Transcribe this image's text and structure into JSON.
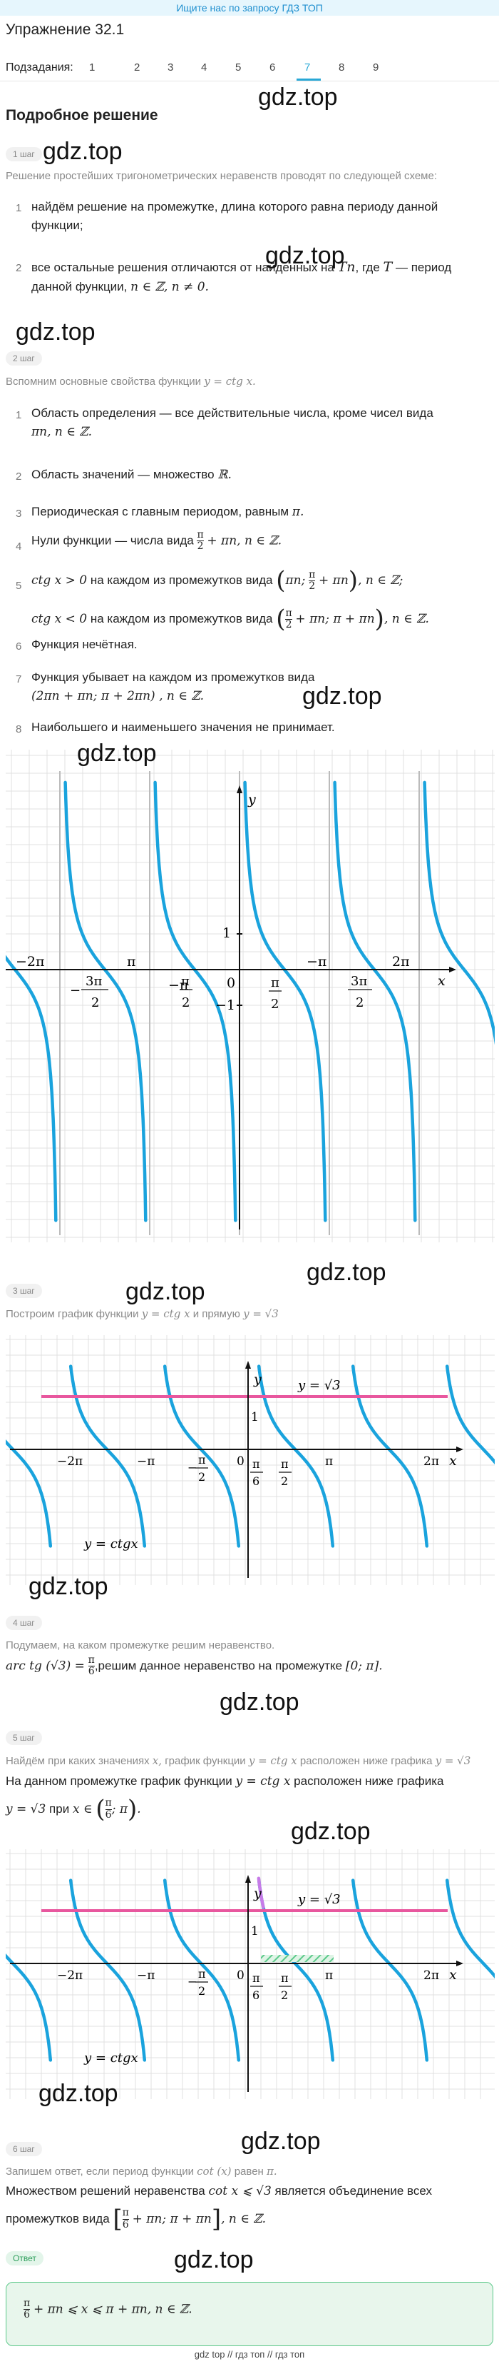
{
  "banner": {
    "text": "Ищите нас по запросу ГДЗ ТОП"
  },
  "header": {
    "title": "Упражнение 32.1"
  },
  "tasks": {
    "label": "Подзадания:",
    "items": [
      "1",
      "2",
      "3",
      "4",
      "5",
      "6",
      "7",
      "8",
      "9"
    ],
    "active_index": 6,
    "accent": "#29a8d6"
  },
  "solution": {
    "title": "Подробное решение"
  },
  "watermark": "gdz.top",
  "steps": {
    "s1": {
      "chip": "1 шаг",
      "note": "Решение простейших тригонометрических неравенств проводят по следующей схеме:",
      "items": [
        {
          "n": "1",
          "text": "найдём решение на промежутке, длина которого равна периоду данной функции;"
        },
        {
          "n": "2",
          "text_a": "все остальные решения отличаются от найденных на",
          "tn": "Tn",
          "text_b": ", где",
          "T": "T",
          "text_c": "— период данной функции,",
          "cond": "n ∈ ℤ, n ≠ 0."
        }
      ]
    },
    "s2": {
      "chip": "2 шаг",
      "note": "Вспомним основные свойства функции",
      "note_math": "y = ctg x.",
      "items": [
        {
          "n": "1",
          "text": "Область определения — все действительные числа, кроме чисел вида",
          "math": "πn,  n ∈ ℤ."
        },
        {
          "n": "2",
          "text": "Область значений — множество",
          "math": "ℝ."
        },
        {
          "n": "3",
          "text": "Периодическая с главным периодом, равным",
          "math": "π."
        },
        {
          "n": "4",
          "text": "Нули функции — числа вида",
          "num": "π",
          "den": "2",
          "tail": "+ πn,  n ∈ ℤ."
        },
        {
          "n": "5",
          "a_math": "ctg x > 0",
          "a_text": "на каждом из промежутков вида",
          "a_int_l": "πn;",
          "a_num": "π",
          "a_den": "2",
          "a_int_r": "+ πn",
          "a_tail": ", n ∈ ℤ;",
          "b_math": "ctg x < 0",
          "b_text": "на каждом из промежутков вида",
          "b_num": "π",
          "b_den": "2",
          "b_int_l": "+ πn;  π + πn",
          "b_tail": ", n ∈ ℤ."
        },
        {
          "n": "6",
          "text": "Функция нечётная."
        },
        {
          "n": "7",
          "text": "Функция убывает на каждом из промежутков вида",
          "math": "(2πn + πn;  π + 2πn) ,  n ∈ ℤ."
        },
        {
          "n": "8",
          "text": "Наибольшего и наименьшего значения не принимает."
        }
      ]
    },
    "graph1": {
      "labels": {
        "y": "y",
        "x": "x",
        "one": "1",
        "neg_one": "−1",
        "zero": "0",
        "m2pi": "−2π",
        "pi": "π",
        "m3pi_num": "3π",
        "m3pi_den": "2",
        "mpi": "−π",
        "mpi2_num": "π",
        "mpi2_den": "2",
        "pi2_num": "π",
        "pi2_den": "2",
        "mpi_right": "−π",
        "p3pi_num": "3π",
        "p3pi_den": "2",
        "p2pi": "2π"
      }
    },
    "s3": {
      "chip": "3 шаг",
      "note": "Построим график функции",
      "note_math_a": "y = ctg x",
      "note_mid": "и прямую",
      "note_math_b": "y = √3"
    },
    "graph2": {
      "labels": {
        "y": "y",
        "x": "x",
        "line": "y = √3",
        "func": "y = ctgx",
        "one": "1",
        "zero": "0",
        "m2pi": "−2π",
        "mpi": "−π",
        "mpi2_num": "π",
        "mpi2_den": "2",
        "pi6_num": "π",
        "pi6_den": "6",
        "pi2_num": "π",
        "pi2_den": "2",
        "pi": "π",
        "p2pi": "2π"
      }
    },
    "s4": {
      "chip": "4 шаг",
      "note": "Подумаем, на каком промежутке решим неравенство.",
      "math_a": "arc tg (√3) =",
      "num": "π",
      "den": "6",
      "text": ",решим данное неравенство на промежутке",
      "interval": "[0;  π]."
    },
    "s5": {
      "chip": "5 шаг",
      "note": "Найдём при каких значениях",
      "note_x": "x,",
      "note_b": "график функции",
      "note_math": "y = ctg x",
      "note_c": "расположен ниже графика",
      "note_math2": "y = √3",
      "line1_a": "На данном промежутке график функции",
      "line1_math": "y = ctg x",
      "line1_b": "расположен ниже графика",
      "line2_math": "y = √3",
      "line2_text": "при",
      "line2_x": "x ∈",
      "num": "π",
      "den": "6",
      "tail": "; π"
    },
    "graph3": {
      "labels": {
        "y": "y",
        "x": "x",
        "line": "y = √3",
        "func": "y = ctgx",
        "one": "1",
        "zero": "0",
        "m2pi": "−2π",
        "mpi": "−π",
        "mpi2_num": "π",
        "mpi2_den": "2",
        "pi6_num": "π",
        "pi6_den": "6",
        "pi2_num": "π",
        "pi2_den": "2",
        "pi": "π",
        "p2pi": "2π"
      }
    },
    "s6": {
      "chip": "6 шаг",
      "note": "Запишем ответ, если период функции",
      "note_math": "cot (x)",
      "note_b": "равен",
      "note_pi": "π.",
      "line1_a": "Множеством решений неравенства",
      "line1_math": "cot x ⩽ √3",
      "line1_b": "является объединение всех",
      "line2_a": "промежутков вида",
      "num": "π",
      "den": "6",
      "line2_b": "+ πn;  π + πn",
      "line2_c": ",  n ∈ ℤ."
    },
    "answer": {
      "chip": "Ответ",
      "num": "π",
      "den": "6",
      "text": "+ πn ⩽ x ⩽ π + πn,  n ∈ ℤ."
    }
  },
  "footer": {
    "links": [
      "gdz top",
      "гдз топ",
      "гдз топ"
    ],
    "sep": "//"
  },
  "colors": {
    "curve": "#1aa3dd",
    "line": "#e8579e",
    "grid": "#e0e0e0",
    "accent": "#29a8d6",
    "hatch": "#5cc98a",
    "violet": "#c77be8",
    "answer_bg": "#e8f6ec",
    "answer_border": "#5cc98a"
  }
}
